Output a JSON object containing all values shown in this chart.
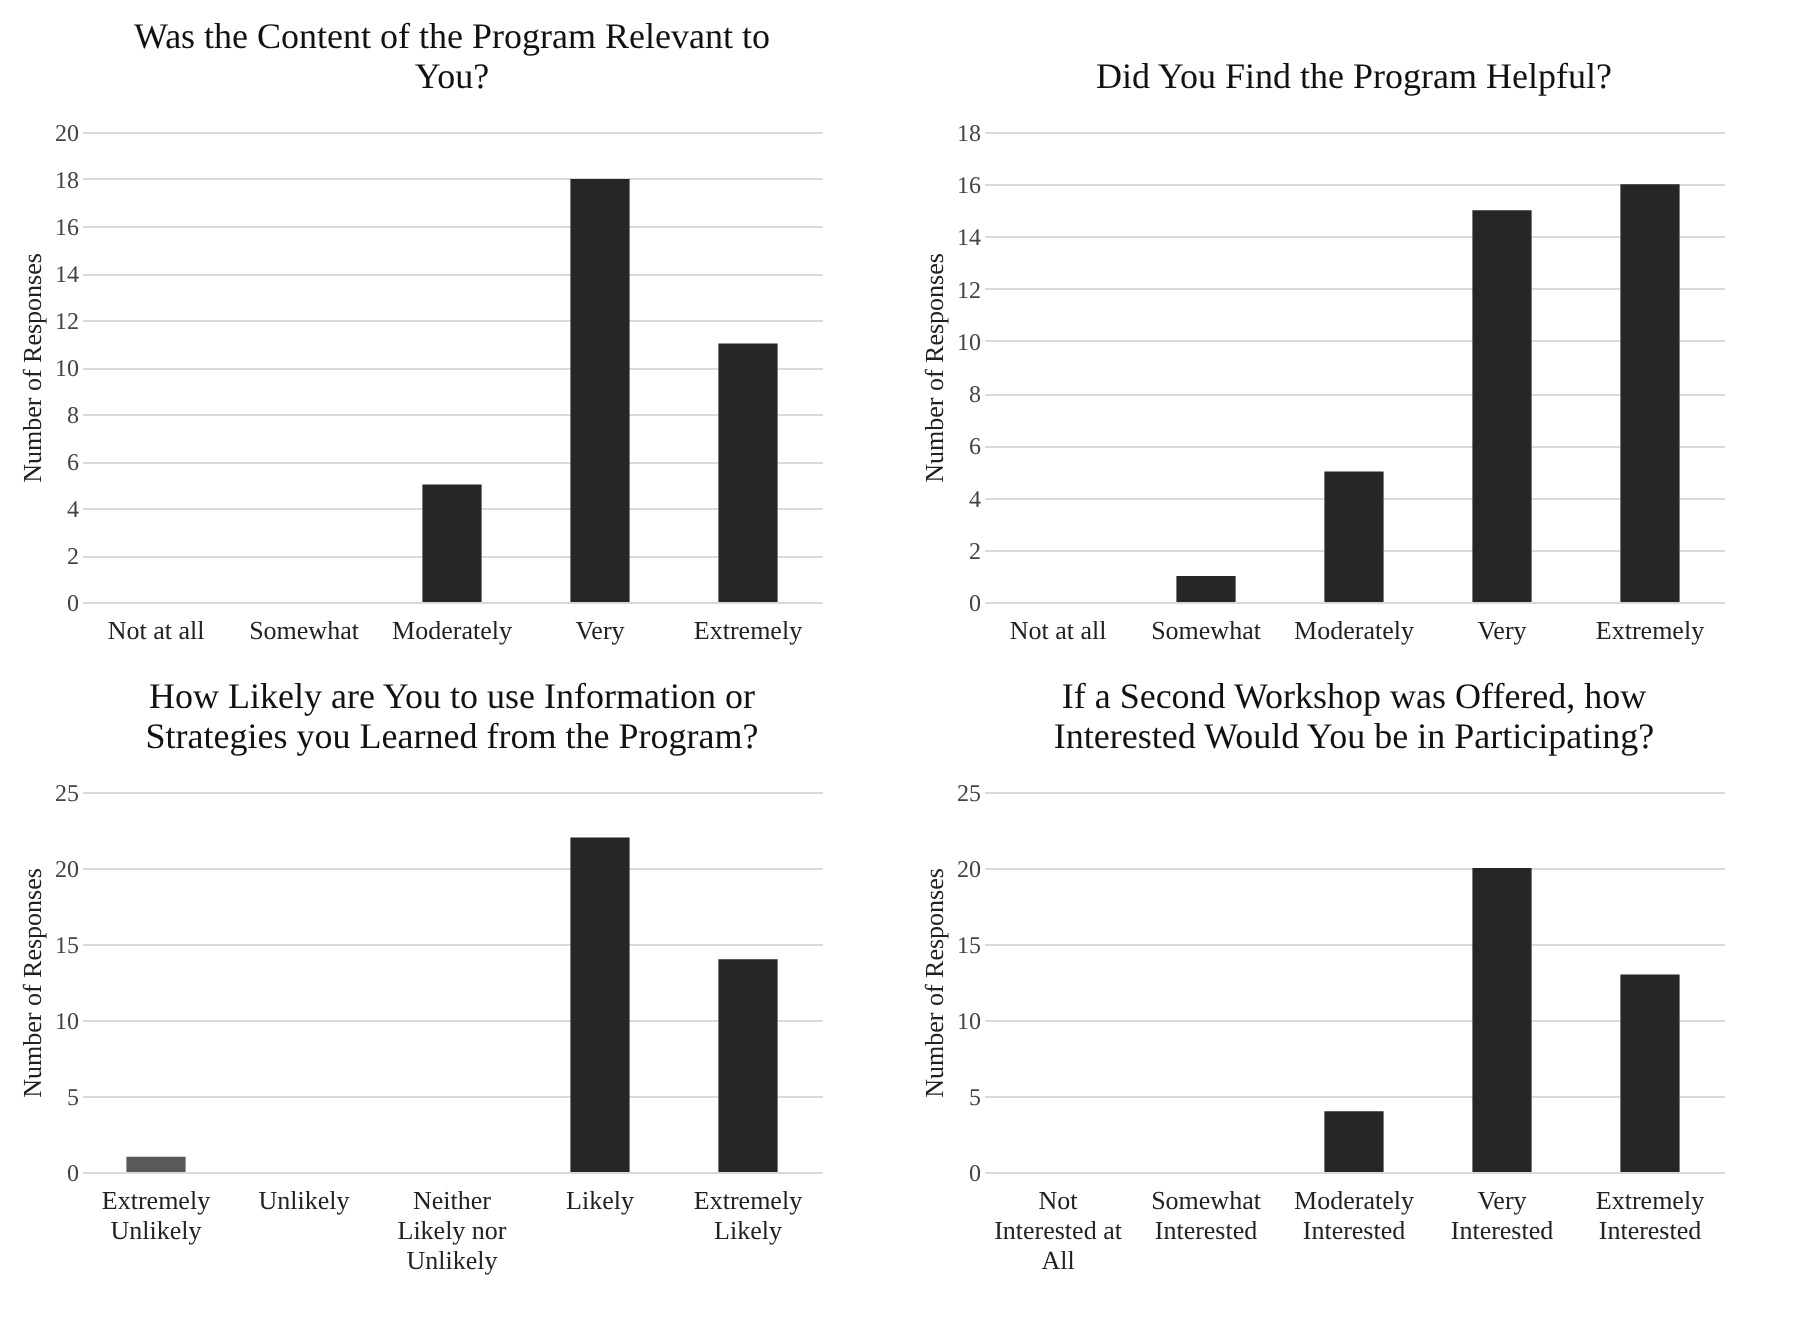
{
  "chart_data": [
    {
      "type": "bar",
      "title": "Was the Content of the Program Relevant to You?",
      "ylabel": "Number of Responses",
      "categories": [
        "Not at all",
        "Somewhat",
        "Moderately",
        "Very",
        "Extremely"
      ],
      "values": [
        0,
        0,
        5,
        18,
        11
      ],
      "colors": [
        "#262626",
        "#262626",
        "#262626",
        "#262626",
        "#262626"
      ],
      "ylim": [
        0,
        20
      ],
      "yticks": [
        0,
        2,
        4,
        6,
        8,
        10,
        12,
        14,
        16,
        18,
        20
      ],
      "grid": "y"
    },
    {
      "type": "bar",
      "title": "Did You Find the Program Helpful?",
      "ylabel": "Number of Responses",
      "categories": [
        "Not at all",
        "Somewhat",
        "Moderately",
        "Very",
        "Extremely"
      ],
      "values": [
        0,
        1,
        5,
        15,
        16
      ],
      "colors": [
        "#262626",
        "#262626",
        "#262626",
        "#262626",
        "#262626"
      ],
      "ylim": [
        0,
        18
      ],
      "yticks": [
        0,
        2,
        4,
        6,
        8,
        10,
        12,
        14,
        16,
        18
      ],
      "grid": "y"
    },
    {
      "type": "bar",
      "title": "How Likely are You to use Information or Strategies you Learned from the Program?",
      "ylabel": "Number of Responses",
      "categories": [
        "Extremely Unlikely",
        "Unlikely",
        "Neither Likely nor Unlikely",
        "Likely",
        "Extremely Likely"
      ],
      "values": [
        1,
        0,
        0,
        22,
        14
      ],
      "colors": [
        "#595959",
        "#262626",
        "#262626",
        "#262626",
        "#262626"
      ],
      "ylim": [
        0,
        25
      ],
      "yticks": [
        0,
        5,
        10,
        15,
        20,
        25
      ],
      "grid": "y"
    },
    {
      "type": "bar",
      "title": "If a Second Workshop was Offered, how Interested Would You be in Participating?",
      "ylabel": "Number of Responses",
      "categories": [
        "Not Interested at All",
        "Somewhat Interested",
        "Moderately Interested",
        "Very Interested",
        "Extremely Interested"
      ],
      "values": [
        0,
        0,
        4,
        20,
        13
      ],
      "colors": [
        "#262626",
        "#262626",
        "#262626",
        "#262626",
        "#262626"
      ],
      "ylim": [
        0,
        25
      ],
      "yticks": [
        0,
        5,
        10,
        15,
        20,
        25
      ],
      "grid": "y"
    }
  ]
}
